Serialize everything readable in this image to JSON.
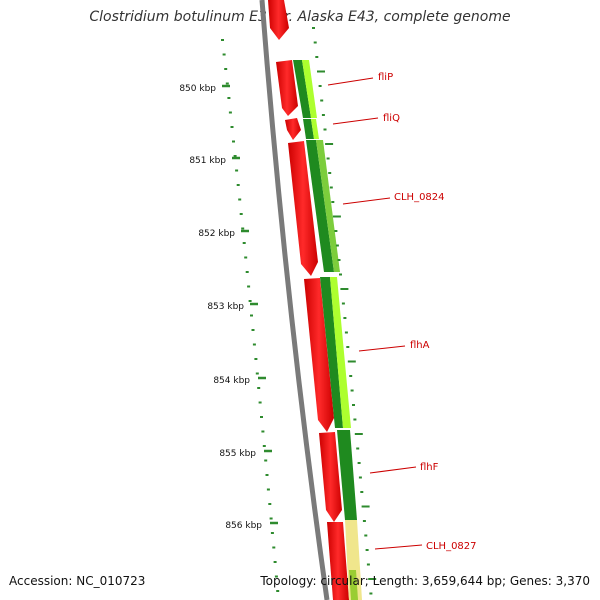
{
  "title": "Clostridium botulinum E3 str. Alaska E43, complete genome",
  "accession_text": "Accession: NC_010723",
  "topology_text": "Topology: circular; Length: 3,659,644 bp; Genes: 3,370",
  "ruler_labels": [
    "850 kbp",
    "851 kbp",
    "852 kbp",
    "853 kbp",
    "854 kbp",
    "855 kbp",
    "856 kbp"
  ],
  "gene_labels": [
    "fliP",
    "fliQ",
    "CLH_0824",
    "flhA",
    "flhF",
    "CLH_0827"
  ],
  "colors": {
    "gene_forward": "#ff0000",
    "cds_dark": "#1f8a1f",
    "cds_light": "#adff2f",
    "cds_pale": "#f0e68c",
    "backbone": "#808080",
    "tick": "#2e8b2e",
    "label": "#cc0000"
  }
}
